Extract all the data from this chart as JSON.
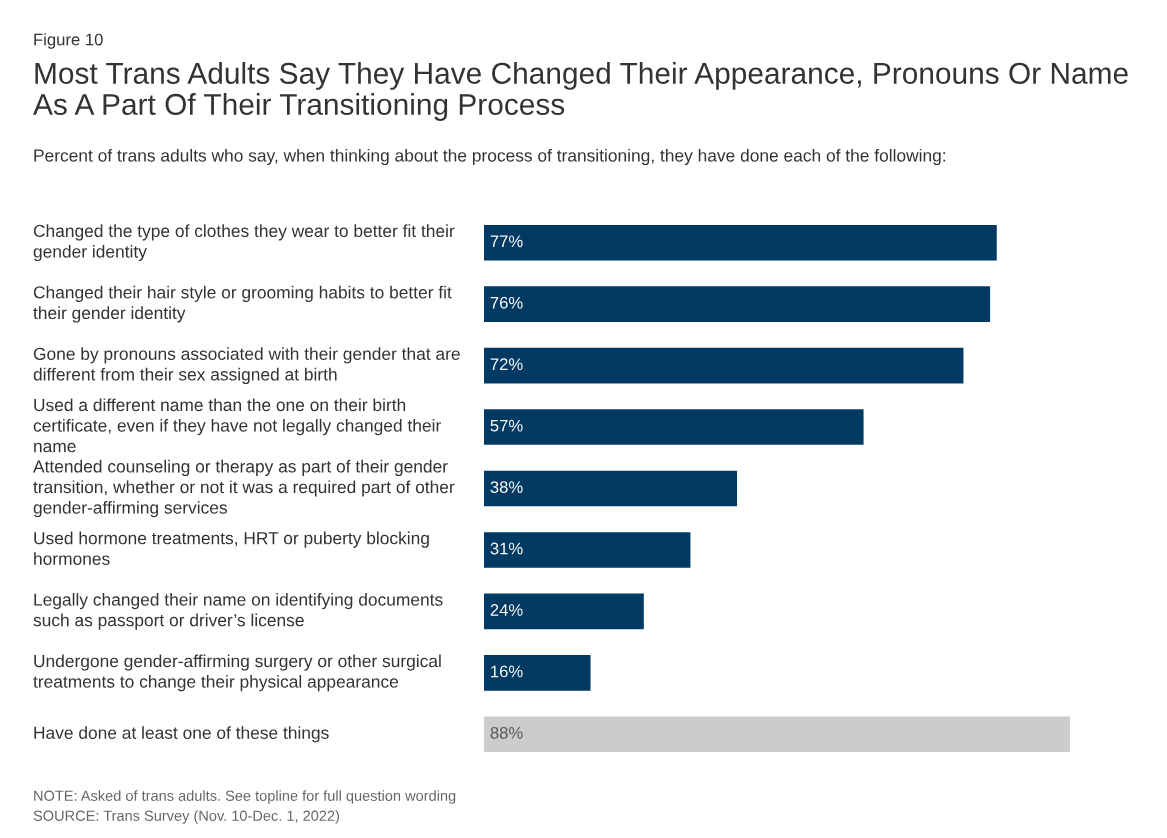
{
  "chart_data": {
    "type": "bar",
    "orientation": "horizontal",
    "data_labels": true,
    "title": "Most Trans Adults Say They Have Changed Their Appearance, Pronouns Or Name As A Part Of Their Transitioning Process",
    "subtitle": "Percent of trans adults who say, when thinking about the process of transitioning, they have done each of the following:",
    "categories": [
      "Changed the type of clothes they wear to better fit their gender identity",
      "Changed their hair style or grooming habits to better fit their gender identity",
      "Gone by pronouns associated with their gender that are different from their sex assigned at birth",
      "Used a different name than the one on their birth certificate, even if they have not legally changed their name",
      "Attended counseling or therapy as part of their gender transition, whether or not it was a required part of other gender-affirming services",
      "Used hormone treatments, HRT or puberty blocking hormones",
      "Legally changed their name on identifying documents such as passport or driver’s license",
      "Undergone gender-affirming surgery or other surgical treatments to change their physical appearance",
      "Have done at least one of these things"
    ],
    "values": [
      77,
      76,
      72,
      57,
      38,
      31,
      24,
      16,
      88
    ],
    "value_labels": [
      "77%",
      "76%",
      "72%",
      "57%",
      "38%",
      "31%",
      "24%",
      "16%",
      "88%"
    ],
    "colors": [
      "#003a63",
      "#003a63",
      "#003a63",
      "#003a63",
      "#003a63",
      "#003a63",
      "#003a63",
      "#003a63",
      "#cccccc"
    ],
    "annotations": [
      "Figure 10",
      "NOTE: Asked of trans adults. See topline for full question wording",
      "SOURCE: Trans Survey (Nov. 10-Dec. 1, 2022)"
    ],
    "grid": false
  }
}
